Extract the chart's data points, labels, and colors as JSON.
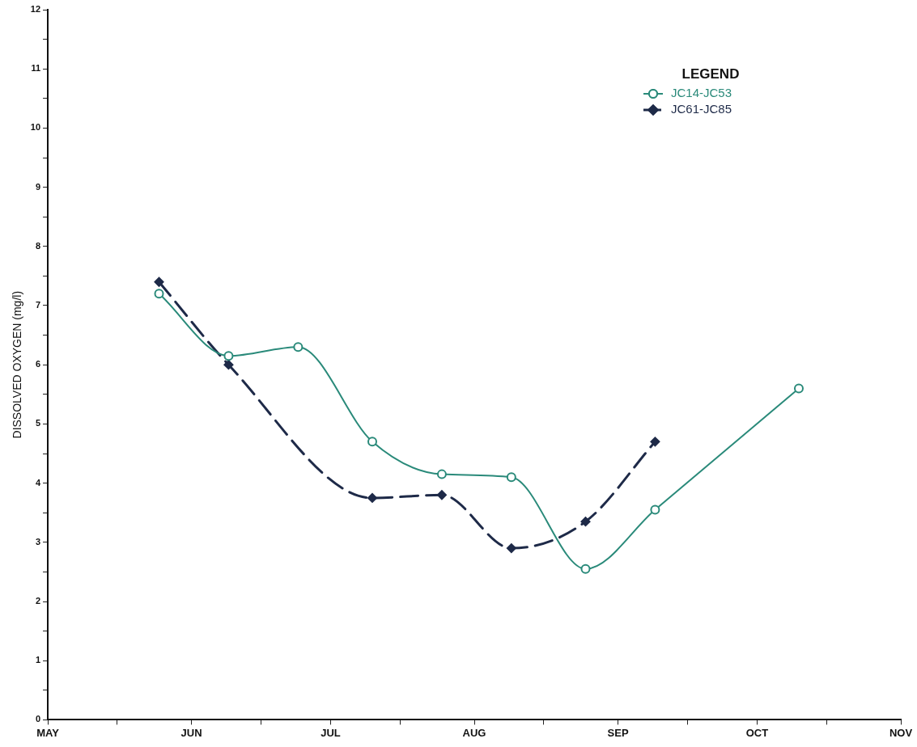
{
  "chart_data": {
    "type": "line",
    "ylabel": "DISSOLVED OXYGEN (mg/l)",
    "legend_title": "LEGEND",
    "legend": "top right",
    "grid": false,
    "xlim": [
      "--05-01",
      "--11-01"
    ],
    "xticks": [
      {
        "value": "--05-01",
        "label": "MAY"
      },
      {
        "value": "--05-16",
        "label": null
      },
      {
        "value": "--06-01",
        "label": "JUN"
      },
      {
        "value": "--06-16",
        "label": null
      },
      {
        "value": "--07-01",
        "label": "JUL"
      },
      {
        "value": "--07-16",
        "label": null
      },
      {
        "value": "--08-01",
        "label": "AUG"
      },
      {
        "value": "--08-16",
        "label": null
      },
      {
        "value": "--09-01",
        "label": "SEP"
      },
      {
        "value": "--09-16",
        "label": null
      },
      {
        "value": "--10-01",
        "label": "OCT"
      },
      {
        "value": "--10-16",
        "label": null
      },
      {
        "value": "--11-01",
        "label": "NOV"
      }
    ],
    "ylim": [
      0,
      12
    ],
    "yticks": [
      0,
      {
        "value": 0.5,
        "label": null
      },
      1,
      {
        "value": 1.5,
        "label": null
      },
      2,
      {
        "value": 2.5,
        "label": null
      },
      3,
      {
        "value": 3.5,
        "label": null
      },
      4,
      {
        "value": 4.5,
        "label": null
      },
      5,
      {
        "value": 5.5,
        "label": null
      },
      6,
      {
        "value": 6.5,
        "label": null
      },
      7,
      {
        "value": 7.5,
        "label": null
      },
      8,
      {
        "value": 8.5,
        "label": null
      },
      9,
      {
        "value": 9.5,
        "label": null
      },
      10,
      {
        "value": 10.5,
        "label": null
      },
      11,
      {
        "value": 11.5,
        "label": null
      },
      12
    ],
    "series": [
      {
        "name": "JC14-JC53",
        "color": "#2a8a7a",
        "marker": "circle",
        "line_style": "solid",
        "x": [
          "--05-25",
          "--06-09",
          "--06-24",
          "--07-10",
          "--07-25",
          "--08-09",
          "--08-25",
          "--09-09",
          "--10-10"
        ],
        "values": [
          7.2,
          6.15,
          6.3,
          4.7,
          4.15,
          4.1,
          2.55,
          3.55,
          5.6
        ]
      },
      {
        "name": "JC61-JC85",
        "color": "#1e2a48",
        "marker": "diamond",
        "line_style": "dashed",
        "x": [
          "--05-25",
          "--06-09",
          "--07-10",
          "--07-25",
          "--08-09",
          "--08-25",
          "--09-09"
        ],
        "values": [
          7.4,
          6.0,
          3.75,
          3.8,
          2.9,
          3.35,
          4.7
        ]
      }
    ]
  }
}
